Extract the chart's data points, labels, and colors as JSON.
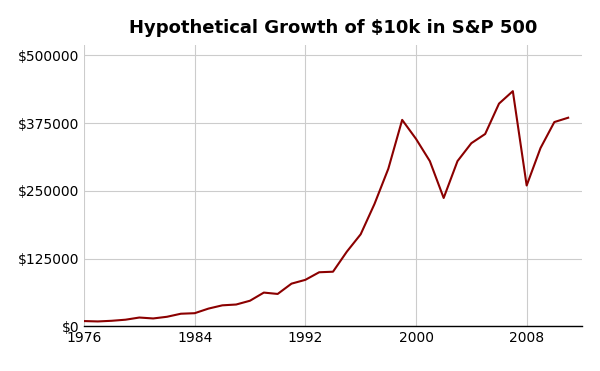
{
  "title": "Hypothetical Growth of $10k in S&P 500",
  "line_color": "#8B0000",
  "line_width": 1.5,
  "background_color": "#ffffff",
  "grid_color": "#cccccc",
  "years": [
    1976,
    1977,
    1978,
    1979,
    1980,
    1981,
    1982,
    1983,
    1984,
    1985,
    1986,
    1987,
    1988,
    1989,
    1990,
    1991,
    1992,
    1993,
    1994,
    1995,
    1996,
    1997,
    1998,
    1999,
    2000,
    2001,
    2002,
    2003,
    2004,
    2005,
    2006,
    2007,
    2008,
    2009,
    2010,
    2011
  ],
  "values": [
    10000,
    9300,
    10500,
    12500,
    16500,
    14800,
    17900,
    23500,
    24500,
    33000,
    39000,
    40500,
    47500,
    62500,
    60000,
    79000,
    86000,
    100000,
    101000,
    138000,
    170000,
    226000,
    291000,
    381000,
    346000,
    305000,
    237000,
    305000,
    338000,
    355000,
    411000,
    434000,
    260000,
    329000,
    377000,
    385000
  ],
  "xticks": [
    1976,
    1984,
    1992,
    2000,
    2008
  ],
  "yticks": [
    0,
    125000,
    250000,
    375000,
    500000
  ],
  "ylim": [
    0,
    520000
  ],
  "xlim": [
    1976,
    2012
  ],
  "title_fontsize": 13,
  "tick_fontsize": 10
}
